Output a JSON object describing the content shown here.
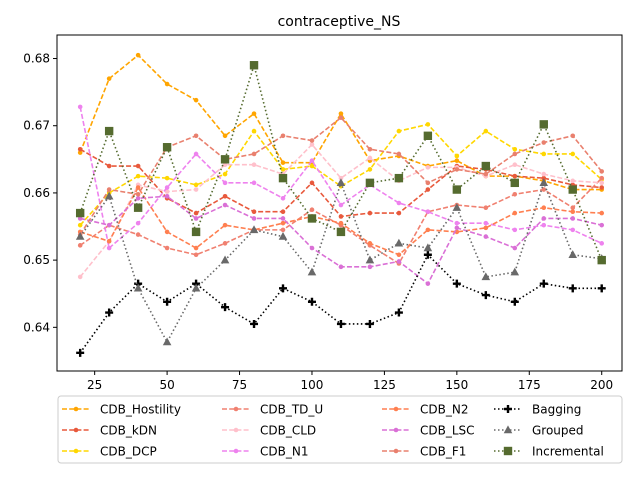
{
  "chart_data": {
    "type": "line",
    "title": "contraceptive_NS",
    "xlabel": "",
    "ylabel": "",
    "xlim": [
      12,
      207
    ],
    "ylim": [
      0.6335,
      0.6835
    ],
    "xticks": [
      25,
      50,
      75,
      100,
      125,
      150,
      175,
      200
    ],
    "yticks": [
      0.64,
      0.65,
      0.66,
      0.67,
      0.68
    ],
    "grid": false,
    "legend_position": "lower center, outside plot",
    "x": [
      20,
      30,
      40,
      50,
      60,
      70,
      80,
      90,
      100,
      110,
      120,
      130,
      140,
      150,
      160,
      170,
      180,
      190,
      200
    ],
    "series": [
      {
        "name": "CDB_Hostility",
        "color": "#ffa500",
        "linestyle": "dashed",
        "marker": "circle",
        "values": [
          0.666,
          0.677,
          0.6805,
          0.6762,
          0.6738,
          0.6685,
          0.6718,
          0.6645,
          0.6645,
          0.6718,
          0.6648,
          0.6655,
          0.664,
          0.6648,
          0.6625,
          0.6625,
          0.6618,
          0.6605,
          0.6605
        ]
      },
      {
        "name": "CDB_kDN",
        "color": "#e8593c",
        "linestyle": "dashed",
        "marker": "circle",
        "values": [
          0.6665,
          0.664,
          0.664,
          0.6592,
          0.657,
          0.6595,
          0.6572,
          0.6572,
          0.6615,
          0.6565,
          0.657,
          0.657,
          0.6605,
          0.664,
          0.6635,
          0.6625,
          0.6622,
          0.6612,
          0.6608
        ]
      },
      {
        "name": "CDB_DCP",
        "color": "#ffd700",
        "linestyle": "dashed",
        "marker": "circle",
        "values": [
          0.6552,
          0.66,
          0.6625,
          0.6622,
          0.6612,
          0.6628,
          0.6692,
          0.6635,
          0.664,
          0.661,
          0.6635,
          0.6692,
          0.6702,
          0.6655,
          0.6692,
          0.6665,
          0.6658,
          0.6658,
          0.662
        ]
      },
      {
        "name": "CDB_TD_U",
        "color": "#f08070",
        "linestyle": "dashed",
        "marker": "circle",
        "values": [
          0.6522,
          0.6552,
          0.6538,
          0.6518,
          0.6508,
          0.6525,
          0.6545,
          0.6545,
          0.6575,
          0.6552,
          0.6522,
          0.6495,
          0.6572,
          0.6582,
          0.6578,
          0.6598,
          0.6605,
          0.6578,
          0.6622
        ]
      },
      {
        "name": "CDB_CLD",
        "color": "#ffc0cb",
        "linestyle": "dashed",
        "marker": "circle",
        "values": [
          0.6475,
          0.6528,
          0.6612,
          0.6602,
          0.6605,
          0.6642,
          0.6642,
          0.6628,
          0.6672,
          0.6622,
          0.6652,
          0.6618,
          0.6638,
          0.6638,
          0.6625,
          0.6642,
          0.6628,
          0.6618,
          0.6615
        ]
      },
      {
        "name": "CDB_N1",
        "color": "#ee82ee",
        "linestyle": "dashed",
        "marker": "circle",
        "values": [
          0.6728,
          0.6518,
          0.6555,
          0.6608,
          0.6658,
          0.6615,
          0.6615,
          0.6592,
          0.6648,
          0.6582,
          0.6612,
          0.6585,
          0.6572,
          0.6555,
          0.6555,
          0.6545,
          0.6552,
          0.6545,
          0.6525
        ]
      },
      {
        "name": "CDB_N2",
        "color": "#ff7f50",
        "linestyle": "dashed",
        "marker": "circle",
        "values": [
          0.6542,
          0.6528,
          0.6608,
          0.6542,
          0.6518,
          0.6552,
          0.6545,
          0.6555,
          0.6565,
          0.6555,
          0.6525,
          0.6508,
          0.6545,
          0.6542,
          0.6548,
          0.657,
          0.6578,
          0.6572,
          0.657
        ]
      },
      {
        "name": "CDB_LSC",
        "color": "#da70d6",
        "linestyle": "dashed",
        "marker": "circle",
        "values": [
          0.6562,
          0.6552,
          0.6592,
          0.6595,
          0.6562,
          0.6582,
          0.6562,
          0.6562,
          0.6518,
          0.649,
          0.649,
          0.6498,
          0.6465,
          0.6548,
          0.6535,
          0.6518,
          0.6562,
          0.6562,
          0.6552
        ]
      },
      {
        "name": "CDB_F1",
        "color": "#e9806e",
        "linestyle": "dashed",
        "marker": "circle",
        "values": [
          0.6538,
          0.6605,
          0.6598,
          0.6668,
          0.6685,
          0.665,
          0.6658,
          0.6685,
          0.6678,
          0.6712,
          0.6665,
          0.6658,
          0.6615,
          0.6635,
          0.6628,
          0.6658,
          0.6675,
          0.6685,
          0.6632
        ]
      },
      {
        "name": "Bagging",
        "color": "#000000",
        "linestyle": "dotted",
        "marker": "plus",
        "values": [
          0.6362,
          0.6422,
          0.6465,
          0.6438,
          0.6465,
          0.643,
          0.6405,
          0.6458,
          0.6438,
          0.6405,
          0.6405,
          0.6422,
          0.6508,
          0.6465,
          0.6448,
          0.6438,
          0.6465,
          0.6458,
          0.6458
        ]
      },
      {
        "name": "Grouped",
        "color": "#696969",
        "linestyle": "dotted",
        "marker": "triangle",
        "values": [
          0.6535,
          0.6595,
          0.6458,
          0.6378,
          0.6458,
          0.65,
          0.6545,
          0.6535,
          0.6482,
          0.6615,
          0.65,
          0.6525,
          0.6518,
          0.6578,
          0.6475,
          0.6482,
          0.6615,
          0.6508,
          0.6502
        ]
      },
      {
        "name": "Incremental",
        "color": "#556b2f",
        "linestyle": "dotted",
        "marker": "square",
        "values": [
          0.657,
          0.6692,
          0.6578,
          0.6668,
          0.6542,
          0.665,
          0.679,
          0.6622,
          0.6562,
          0.6542,
          0.6615,
          0.6622,
          0.6685,
          0.6605,
          0.664,
          0.6615,
          0.6702,
          0.6605,
          0.65
        ]
      }
    ]
  }
}
